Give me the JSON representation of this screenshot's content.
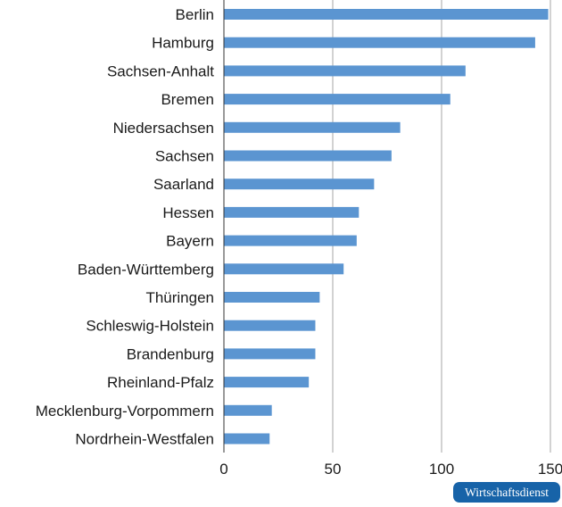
{
  "chart_data": {
    "type": "bar",
    "orientation": "horizontal",
    "categories": [
      "Berlin",
      "Hamburg",
      "Sachsen-Anhalt",
      "Bremen",
      "Niedersachsen",
      "Sachsen",
      "Saarland",
      "Hessen",
      "Bayern",
      "Baden-Württemberg",
      "Thüringen",
      "Schleswig-Holstein",
      "Brandenburg",
      "Rheinland-Pfalz",
      "Mecklenburg-Vorpommern",
      "Nordrhein-Westfalen"
    ],
    "values": [
      149,
      143,
      111,
      104,
      81,
      77,
      69,
      62,
      61,
      55,
      44,
      42,
      42,
      39,
      22,
      21
    ],
    "xlim": [
      0,
      150
    ],
    "xticks": [
      "0",
      "50",
      "100",
      "150"
    ],
    "grid": true,
    "bar_color": "#5b95d1",
    "title": "",
    "xlabel": "",
    "ylabel": ""
  },
  "badge": {
    "text": "Wirtschaftsdienst",
    "color": "#1763a8"
  }
}
